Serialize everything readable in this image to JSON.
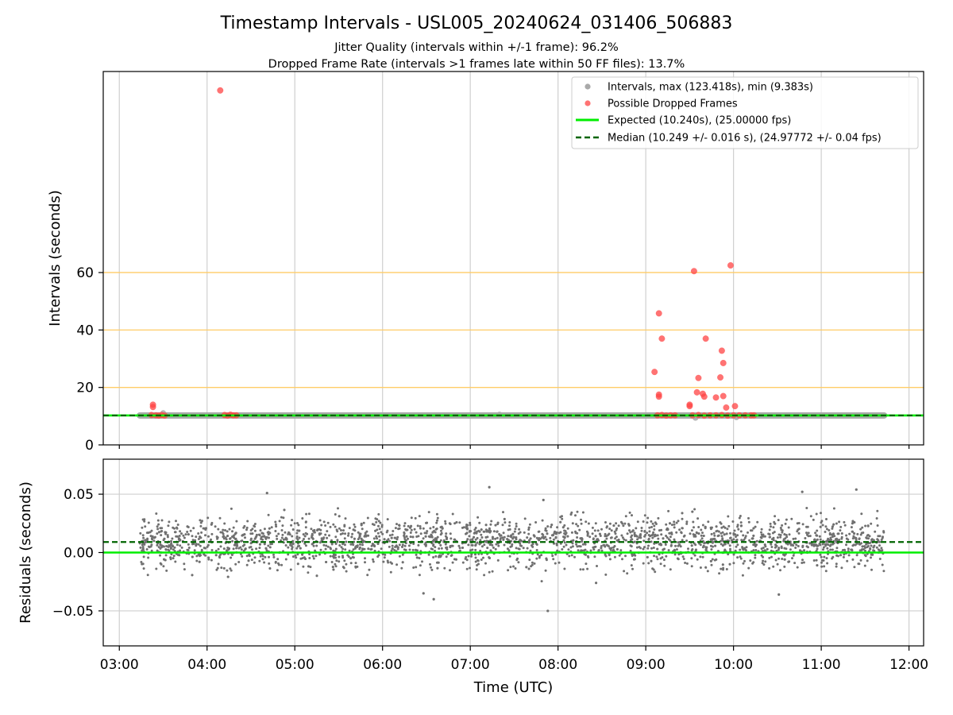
{
  "figure": {
    "title": "Timestamp Intervals - USL005_20240624_031406_506883",
    "subtitle_1": "Jitter Quality (intervals within +/-1 frame): 96.2%",
    "subtitle_2": "Dropped Frame Rate (intervals >1 frames late within 50 FF files): 13.7%",
    "xlabel": "Time (UTC)"
  },
  "colors": {
    "intervals": "#a9a9a9",
    "dropped": "#ff4444",
    "expected": "#00ee00",
    "median": "#006400",
    "residuals": "#707070",
    "threshold_lines": "#ffcc66",
    "grid": "#cfcfcf"
  },
  "chart_data": [
    {
      "type": "scatter",
      "panel": "intervals",
      "ylabel": "Intervals (seconds)",
      "xlim": [
        "02:49",
        "12:10"
      ],
      "ylim": [
        0,
        130
      ],
      "x_ticks": [
        "03:00",
        "04:00",
        "05:00",
        "06:00",
        "07:00",
        "08:00",
        "09:00",
        "10:00",
        "11:00",
        "12:00"
      ],
      "y_ticks": [
        0,
        20,
        40,
        60
      ],
      "grid": "vertical",
      "horizontal_reference_lines": [
        20,
        40,
        60
      ],
      "legend_position": "top-right",
      "legend": {
        "intervals": "Intervals, max (123.418s), min (9.383s)",
        "dropped": "Possible Dropped Frames",
        "expected": "Expected (10.240s), (25.00000 fps)",
        "median": "Median (10.249 +/- 0.016 s), (24.97772 +/- 0.04 fps)"
      },
      "expected_value": 10.24,
      "median_value": 10.249,
      "intervals_range": {
        "x_start": "03:14",
        "x_end": "11:43",
        "typical_value": 10.24,
        "max": 123.418,
        "min": 9.383
      },
      "outlier_intervals": [
        {
          "x": "03:30",
          "y": 11.1
        },
        {
          "x": "07:20",
          "y": 10.6
        },
        {
          "x": "09:34",
          "y": 9.383
        },
        {
          "x": "10:02",
          "y": 9.6
        }
      ],
      "dropped_frames": [
        {
          "x": "03:23",
          "y": 14.0
        },
        {
          "x": "03:23",
          "y": 13.2
        },
        {
          "x": "03:22",
          "y": 10.4
        },
        {
          "x": "03:25",
          "y": 10.3
        },
        {
          "x": "03:27",
          "y": 10.2
        },
        {
          "x": "03:29",
          "y": 10.4
        },
        {
          "x": "03:31",
          "y": 10.2
        },
        {
          "x": "04:09",
          "y": 123.418
        },
        {
          "x": "04:12",
          "y": 10.4
        },
        {
          "x": "04:14",
          "y": 10.2
        },
        {
          "x": "04:16",
          "y": 10.5
        },
        {
          "x": "04:18",
          "y": 10.3
        },
        {
          "x": "04:20",
          "y": 10.3
        },
        {
          "x": "09:06",
          "y": 25.4
        },
        {
          "x": "09:09",
          "y": 45.8
        },
        {
          "x": "09:11",
          "y": 37.0
        },
        {
          "x": "09:09",
          "y": 17.5
        },
        {
          "x": "09:09",
          "y": 16.8
        },
        {
          "x": "09:08",
          "y": 10.3
        },
        {
          "x": "09:11",
          "y": 10.4
        },
        {
          "x": "09:14",
          "y": 10.2
        },
        {
          "x": "09:17",
          "y": 10.3
        },
        {
          "x": "09:20",
          "y": 10.3
        },
        {
          "x": "09:30",
          "y": 14.0
        },
        {
          "x": "09:30",
          "y": 13.5
        },
        {
          "x": "09:33",
          "y": 60.5
        },
        {
          "x": "09:35",
          "y": 18.3
        },
        {
          "x": "09:36",
          "y": 23.3
        },
        {
          "x": "09:39",
          "y": 17.8
        },
        {
          "x": "09:40",
          "y": 16.8
        },
        {
          "x": "09:41",
          "y": 37.0
        },
        {
          "x": "09:48",
          "y": 16.5
        },
        {
          "x": "09:51",
          "y": 23.5
        },
        {
          "x": "09:53",
          "y": 17.0
        },
        {
          "x": "09:52",
          "y": 32.8
        },
        {
          "x": "09:53",
          "y": 28.5
        },
        {
          "x": "09:55",
          "y": 13.0
        },
        {
          "x": "09:58",
          "y": 62.5
        },
        {
          "x": "10:01",
          "y": 13.5
        },
        {
          "x": "09:32",
          "y": 10.3
        },
        {
          "x": "09:36",
          "y": 10.4
        },
        {
          "x": "09:40",
          "y": 10.2
        },
        {
          "x": "09:44",
          "y": 10.3
        },
        {
          "x": "09:48",
          "y": 10.3
        },
        {
          "x": "09:52",
          "y": 10.4
        },
        {
          "x": "09:56",
          "y": 10.2
        },
        {
          "x": "10:00",
          "y": 10.3
        },
        {
          "x": "10:04",
          "y": 10.3
        },
        {
          "x": "10:08",
          "y": 10.3
        },
        {
          "x": "10:12",
          "y": 10.3
        },
        {
          "x": "10:14",
          "y": 10.3
        }
      ]
    },
    {
      "type": "scatter",
      "panel": "residuals",
      "ylabel": "Residuals (seconds)",
      "xlim": [
        "02:49",
        "12:10"
      ],
      "ylim": [
        -0.08,
        0.08
      ],
      "x_ticks": [
        "03:00",
        "04:00",
        "05:00",
        "06:00",
        "07:00",
        "08:00",
        "09:00",
        "10:00",
        "11:00",
        "12:00"
      ],
      "y_ticks": [
        "0.05",
        "0.00",
        "−0.05"
      ],
      "grid": "both",
      "expected_value": 0.0,
      "median_value": 0.009,
      "residual_cloud": {
        "x_start": "03:14",
        "x_end": "11:43",
        "center": 0.009,
        "typical_min": -0.03,
        "typical_max": 0.04
      },
      "residual_extremes": [
        {
          "x": "07:13",
          "y": 0.056
        },
        {
          "x": "11:24",
          "y": 0.054
        },
        {
          "x": "10:47",
          "y": 0.052
        },
        {
          "x": "04:41",
          "y": 0.051
        },
        {
          "x": "07:50",
          "y": 0.045
        },
        {
          "x": "06:35",
          "y": -0.04
        },
        {
          "x": "07:53",
          "y": -0.05
        },
        {
          "x": "06:28",
          "y": -0.035
        },
        {
          "x": "10:31",
          "y": -0.036
        }
      ]
    }
  ]
}
